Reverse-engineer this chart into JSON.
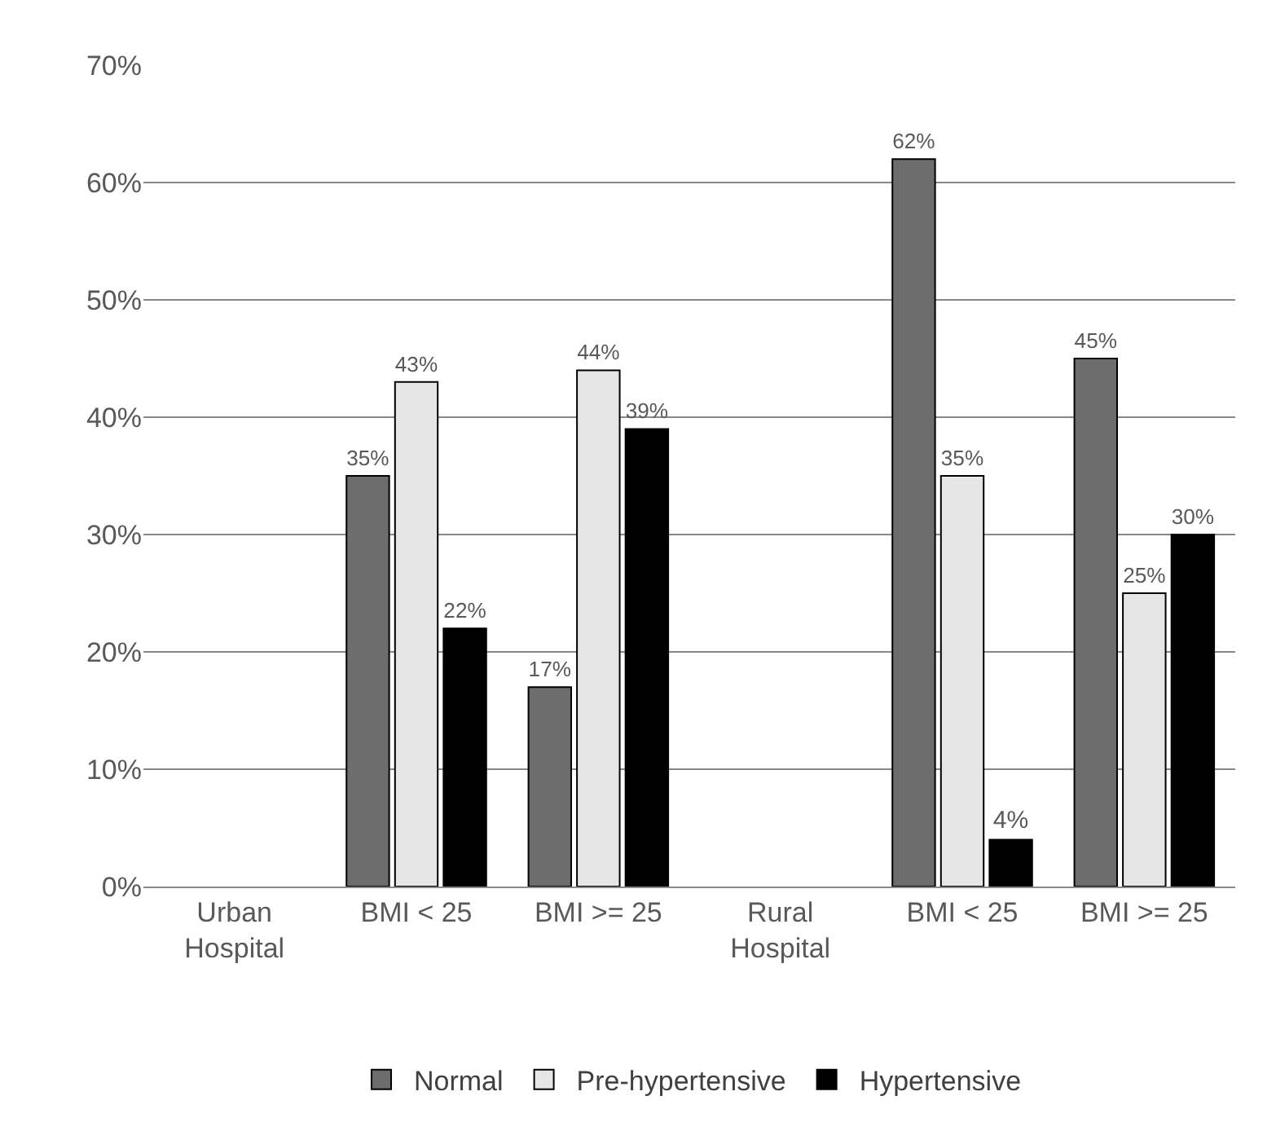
{
  "chart_data": {
    "type": "bar",
    "categories": [
      "Urban Hospital",
      "BMI < 25",
      "BMI >= 25",
      "Rural Hospital",
      "BMI < 25",
      "BMI >= 25"
    ],
    "series": [
      {
        "name": "Normal",
        "color": "#6d6d6d",
        "values": [
          null,
          35,
          17,
          null,
          62,
          45
        ],
        "value_labels": [
          null,
          "35%",
          "17%",
          null,
          "62%",
          "45%"
        ]
      },
      {
        "name": "Pre-hypertensive",
        "color": "#e6e6e6",
        "values": [
          null,
          43,
          44,
          null,
          35,
          25
        ],
        "value_labels": [
          null,
          "43%",
          "44%",
          null,
          "35%",
          "25%"
        ]
      },
      {
        "name": "Hypertensive",
        "color": "#000000",
        "values": [
          null,
          22,
          39,
          null,
          4,
          30
        ],
        "value_labels": [
          null,
          "22%",
          "39%",
          null,
          "4%",
          "30%"
        ]
      }
    ],
    "ylim": [
      0,
      70
    ],
    "yticks": [
      {
        "value": 0,
        "label": "0%"
      },
      {
        "value": 10,
        "label": "10%"
      },
      {
        "value": 20,
        "label": "20%"
      },
      {
        "value": 30,
        "label": "30%"
      },
      {
        "value": 40,
        "label": "40%"
      },
      {
        "value": 50,
        "label": "50%"
      },
      {
        "value": 60,
        "label": "60%"
      },
      {
        "value": 70,
        "label": "70%"
      }
    ],
    "grid": "y",
    "legend": "bottom"
  }
}
